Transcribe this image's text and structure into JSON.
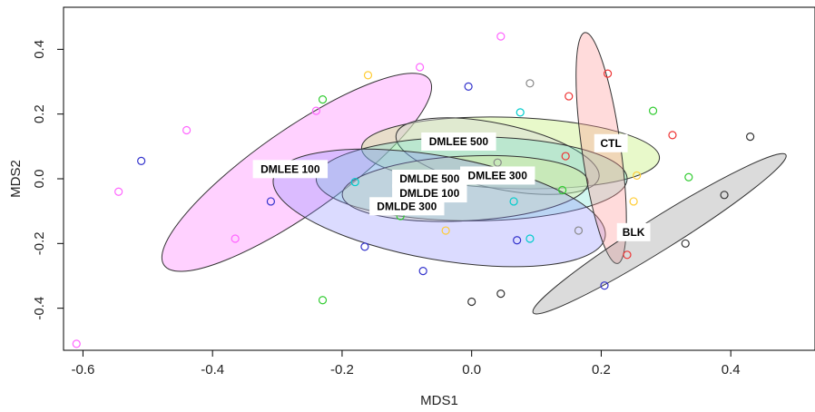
{
  "chart_data": {
    "type": "scatter",
    "title": "",
    "xlabel": "MDS1",
    "ylabel": "MDS2",
    "xlim": [
      -0.63,
      0.53
    ],
    "ylim": [
      -0.53,
      0.53
    ],
    "x_ticks": [
      -0.6,
      -0.4,
      -0.2,
      0.0,
      0.2,
      0.4
    ],
    "x_tick_labels": [
      "-0.6",
      "-0.4",
      "-0.2",
      "0.0",
      "0.2",
      "0.4"
    ],
    "y_ticks": [
      -0.4,
      -0.2,
      0.0,
      0.2,
      0.4
    ],
    "y_tick_labels": [
      "-0.4",
      "-0.2",
      "0.0",
      "0.2",
      "0.4"
    ],
    "grid": false,
    "legend": "none",
    "groups": [
      {
        "label": "DMLEE 100",
        "color": "#ff66ff",
        "ellipse": {
          "cx": -0.27,
          "cy": 0.02,
          "rx": 0.25,
          "ry": 0.13,
          "angle_deg": 35,
          "fill": "#ff66ff",
          "opacity": 0.3
        },
        "label_pos": [
          -0.28,
          0.03
        ],
        "points": [
          [
            -0.61,
            -0.51
          ],
          [
            -0.545,
            -0.04
          ],
          [
            -0.44,
            0.15
          ],
          [
            -0.365,
            -0.185
          ],
          [
            -0.24,
            0.21
          ],
          [
            -0.08,
            0.345
          ],
          [
            0.045,
            0.44
          ]
        ]
      },
      {
        "label": "DMLEE 300",
        "color": "#33cc33",
        "ellipse": {
          "cx": 0.06,
          "cy": 0.08,
          "rx": 0.23,
          "ry": 0.11,
          "angle_deg": -2,
          "fill": "#c6f07a",
          "opacity": 0.4
        },
        "label_pos": [
          0.04,
          0.01
        ],
        "points": [
          [
            -0.23,
            0.245
          ],
          [
            -0.23,
            -0.375
          ],
          [
            -0.11,
            -0.115
          ],
          [
            0.14,
            -0.035
          ],
          [
            0.28,
            0.21
          ],
          [
            0.335,
            0.005
          ]
        ]
      },
      {
        "label": "DMLEE 500",
        "color": "#888888",
        "ellipse": {
          "cx": 0.04,
          "cy": 0.07,
          "rx": 0.16,
          "ry": 0.1,
          "angle_deg": -12,
          "fill": "#d8d8d8",
          "opacity": 0.45
        },
        "label_pos": [
          -0.02,
          0.115
        ],
        "points": [
          [
            0.09,
            0.295
          ],
          [
            0.165,
            -0.16
          ],
          [
            0.04,
            0.05
          ]
        ]
      },
      {
        "label": "DMLDE 500",
        "color": "#00cccc",
        "ellipse": {
          "cx": 0.0,
          "cy": 0.0,
          "rx": 0.24,
          "ry": 0.13,
          "angle_deg": 0,
          "fill": "#66e0cc",
          "opacity": 0.3
        },
        "label_pos": [
          -0.065,
          -0.0
        ],
        "points": [
          [
            -0.18,
            -0.01
          ],
          [
            0.075,
            0.205
          ],
          [
            0.065,
            -0.07
          ],
          [
            0.09,
            -0.185
          ],
          [
            0.04,
            0.0
          ]
        ]
      },
      {
        "label": "DMLDE 100",
        "color": "#ffcc33",
        "ellipse": {
          "cx": -0.01,
          "cy": -0.03,
          "rx": 0.19,
          "ry": 0.1,
          "angle_deg": 3,
          "fill": "#e8ee88",
          "opacity": 0.3
        },
        "label_pos": [
          -0.065,
          -0.045
        ],
        "points": [
          [
            -0.16,
            0.32
          ],
          [
            -0.04,
            -0.16
          ],
          [
            0.255,
            0.01
          ],
          [
            0.25,
            -0.07
          ]
        ]
      },
      {
        "label": "DMLDE 300",
        "color": "#3333cc",
        "ellipse": {
          "cx": -0.05,
          "cy": -0.09,
          "rx": 0.26,
          "ry": 0.16,
          "angle_deg": -10,
          "fill": "#8888ff",
          "opacity": 0.3
        },
        "label_pos": [
          -0.1,
          -0.085
        ],
        "points": [
          [
            -0.51,
            0.055
          ],
          [
            -0.31,
            -0.07
          ],
          [
            -0.165,
            -0.21
          ],
          [
            -0.075,
            -0.285
          ],
          [
            -0.005,
            0.285
          ],
          [
            0.07,
            -0.19
          ],
          [
            0.205,
            -0.33
          ]
        ]
      },
      {
        "label": "CTL",
        "color": "#ee3333",
        "ellipse": {
          "cx": 0.2,
          "cy": 0.095,
          "rx": 0.18,
          "ry": 0.06,
          "angle_deg": -82,
          "fill": "#ff9999",
          "opacity": 0.35
        },
        "label_pos": [
          0.215,
          0.11
        ],
        "points": [
          [
            0.15,
            0.255
          ],
          [
            0.145,
            0.07
          ],
          [
            0.21,
            0.325
          ],
          [
            0.31,
            0.135
          ],
          [
            0.24,
            -0.235
          ]
        ]
      },
      {
        "label": "BLK",
        "color": "#333333",
        "ellipse": {
          "cx": 0.29,
          "cy": -0.17,
          "rx": 0.23,
          "ry": 0.05,
          "angle_deg": 32,
          "fill": "#999999",
          "opacity": 0.35
        },
        "label_pos": [
          0.25,
          -0.165
        ],
        "points": [
          [
            0.43,
            0.13
          ],
          [
            0.39,
            -0.05
          ],
          [
            0.33,
            -0.2
          ],
          [
            0.0,
            -0.38
          ],
          [
            0.045,
            -0.355
          ]
        ]
      }
    ]
  }
}
